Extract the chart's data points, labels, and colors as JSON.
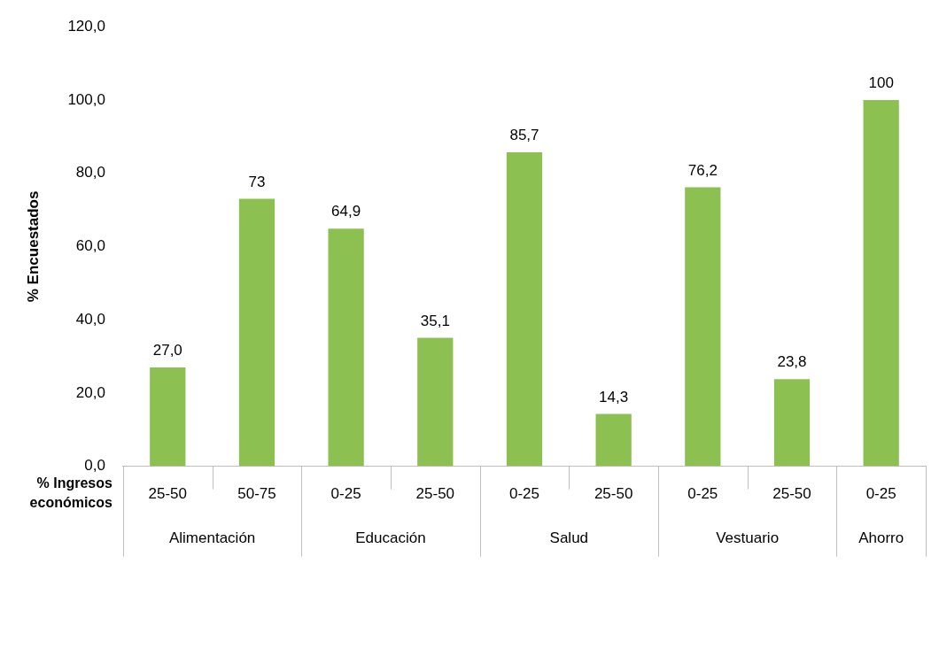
{
  "chart_data": {
    "type": "bar",
    "categories": [
      "25-50",
      "50-75",
      "0-25",
      "25-50",
      "0-25",
      "25-50",
      "0-25",
      "25-50",
      "0-25"
    ],
    "values": [
      27.0,
      73,
      64.9,
      35.1,
      85.7,
      14.3,
      76.2,
      23.8,
      100
    ],
    "value_labels": [
      "27,0",
      "73",
      "64,9",
      "35,1",
      "85,7",
      "14,3",
      "76,2",
      "23,8",
      "100"
    ],
    "color": "#8cc152",
    "ylabel": "% Encuestados",
    "xlabel": "% Ingresos económicos",
    "annotations": [
      "Alimentación",
      "Educación",
      "Salud",
      "Vestuario",
      "Ahorro"
    ],
    "ylim": [
      0,
      120
    ],
    "yticks": [
      {
        "value": 0,
        "label": "0,0"
      },
      {
        "value": 20,
        "label": "20,0"
      },
      {
        "value": 40,
        "label": "40,0"
      },
      {
        "value": 60,
        "label": "60,0"
      },
      {
        "value": 80,
        "label": "80,0"
      },
      {
        "value": 100,
        "label": "100,0"
      },
      {
        "value": 120,
        "label": "120,0"
      }
    ],
    "grid": false,
    "legend": false
  }
}
